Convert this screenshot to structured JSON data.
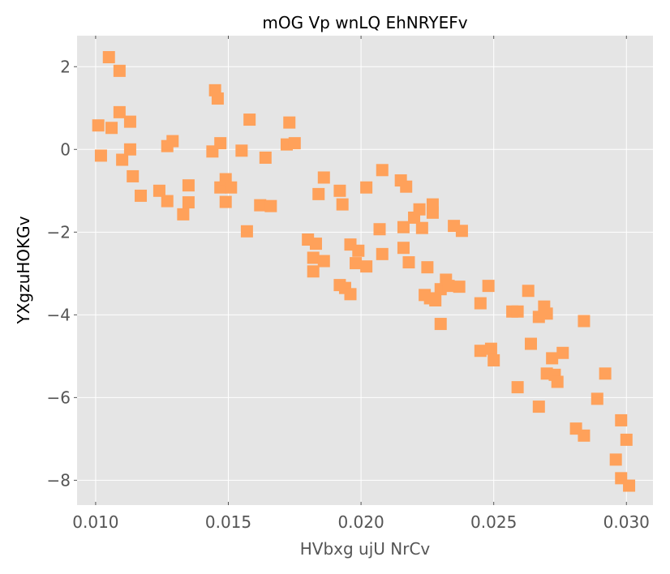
{
  "chart_data": {
    "type": "scatter",
    "title": "mOG Vp wnLQ EhNRYEFv",
    "xlabel": "HVbxg ujU NrCv",
    "ylabel": "YXgzuHOKGv",
    "xlim": [
      0.0093,
      0.031
    ],
    "ylim": [
      -8.6,
      2.75
    ],
    "xticks": [
      0.01,
      0.015,
      0.02,
      0.025,
      0.03
    ],
    "xtick_labels": [
      "0.010",
      "0.015",
      "0.020",
      "0.025",
      "0.030"
    ],
    "yticks": [
      2,
      0,
      -2,
      -4,
      -6,
      -8
    ],
    "ytick_labels": [
      "2",
      "0",
      "−2",
      "−4",
      "−6",
      "−8"
    ],
    "grid": true,
    "marker": "square",
    "colors": {
      "marker": "#FFA15A",
      "plot_bg": "#E5E5E5",
      "grid": "#FFFFFF"
    },
    "points": [
      [
        0.0101,
        0.58
      ],
      [
        0.0102,
        -0.15
      ],
      [
        0.0105,
        2.23
      ],
      [
        0.0106,
        0.52
      ],
      [
        0.0109,
        1.9
      ],
      [
        0.0109,
        0.9
      ],
      [
        0.011,
        -0.25
      ],
      [
        0.0113,
        0.67
      ],
      [
        0.0113,
        0.0
      ],
      [
        0.0114,
        -0.65
      ],
      [
        0.0117,
        -1.12
      ],
      [
        0.0124,
        -1.0
      ],
      [
        0.0127,
        0.08
      ],
      [
        0.0127,
        -1.25
      ],
      [
        0.0129,
        0.2
      ],
      [
        0.0133,
        -1.57
      ],
      [
        0.0135,
        -0.87
      ],
      [
        0.0135,
        -1.28
      ],
      [
        0.0144,
        -0.05
      ],
      [
        0.0145,
        1.43
      ],
      [
        0.0146,
        1.23
      ],
      [
        0.0147,
        0.15
      ],
      [
        0.0147,
        -0.92
      ],
      [
        0.0149,
        -0.72
      ],
      [
        0.0149,
        -1.27
      ],
      [
        0.0151,
        -0.92
      ],
      [
        0.0155,
        -0.03
      ],
      [
        0.0157,
        -1.98
      ],
      [
        0.0158,
        0.72
      ],
      [
        0.0162,
        -1.35
      ],
      [
        0.0164,
        -0.2
      ],
      [
        0.0166,
        -1.37
      ],
      [
        0.0172,
        0.12
      ],
      [
        0.0173,
        0.65
      ],
      [
        0.0175,
        0.15
      ],
      [
        0.018,
        -2.18
      ],
      [
        0.0182,
        -2.95
      ],
      [
        0.0182,
        -2.62
      ],
      [
        0.0183,
        -2.28
      ],
      [
        0.0184,
        -1.08
      ],
      [
        0.0186,
        -2.7
      ],
      [
        0.0186,
        -0.68
      ],
      [
        0.0192,
        -3.28
      ],
      [
        0.0192,
        -1.0
      ],
      [
        0.0193,
        -1.33
      ],
      [
        0.0194,
        -3.35
      ],
      [
        0.0196,
        -3.5
      ],
      [
        0.0196,
        -2.3
      ],
      [
        0.0198,
        -2.75
      ],
      [
        0.0199,
        -2.45
      ],
      [
        0.0202,
        -2.83
      ],
      [
        0.0202,
        -0.92
      ],
      [
        0.0207,
        -1.93
      ],
      [
        0.0208,
        -0.5
      ],
      [
        0.0208,
        -2.53
      ],
      [
        0.0215,
        -0.75
      ],
      [
        0.0216,
        -1.88
      ],
      [
        0.0216,
        -2.38
      ],
      [
        0.0217,
        -0.9
      ],
      [
        0.0218,
        -2.73
      ],
      [
        0.022,
        -1.65
      ],
      [
        0.0222,
        -1.45
      ],
      [
        0.0223,
        -1.9
      ],
      [
        0.0224,
        -3.52
      ],
      [
        0.0225,
        -2.85
      ],
      [
        0.0226,
        -3.6
      ],
      [
        0.0227,
        -1.53
      ],
      [
        0.0227,
        -1.33
      ],
      [
        0.0228,
        -3.65
      ],
      [
        0.023,
        -4.22
      ],
      [
        0.023,
        -3.38
      ],
      [
        0.0232,
        -3.15
      ],
      [
        0.0233,
        -3.3
      ],
      [
        0.0235,
        -1.85
      ],
      [
        0.0237,
        -3.32
      ],
      [
        0.0238,
        -1.97
      ],
      [
        0.0245,
        -3.72
      ],
      [
        0.0245,
        -4.87
      ],
      [
        0.0248,
        -3.3
      ],
      [
        0.0249,
        -4.82
      ],
      [
        0.025,
        -5.1
      ],
      [
        0.0257,
        -3.92
      ],
      [
        0.0259,
        -3.92
      ],
      [
        0.0259,
        -5.75
      ],
      [
        0.0263,
        -3.42
      ],
      [
        0.0264,
        -4.7
      ],
      [
        0.0267,
        -4.05
      ],
      [
        0.0267,
        -6.22
      ],
      [
        0.0269,
        -3.8
      ],
      [
        0.027,
        -3.97
      ],
      [
        0.027,
        -5.42
      ],
      [
        0.0272,
        -5.05
      ],
      [
        0.0273,
        -5.45
      ],
      [
        0.0274,
        -5.62
      ],
      [
        0.0276,
        -4.92
      ],
      [
        0.0281,
        -6.75
      ],
      [
        0.0284,
        -6.92
      ],
      [
        0.0284,
        -4.15
      ],
      [
        0.0289,
        -6.03
      ],
      [
        0.0292,
        -5.42
      ],
      [
        0.0296,
        -7.5
      ],
      [
        0.0298,
        -6.55
      ],
      [
        0.0298,
        -7.95
      ],
      [
        0.03,
        -7.02
      ],
      [
        0.0301,
        -8.13
      ]
    ]
  }
}
